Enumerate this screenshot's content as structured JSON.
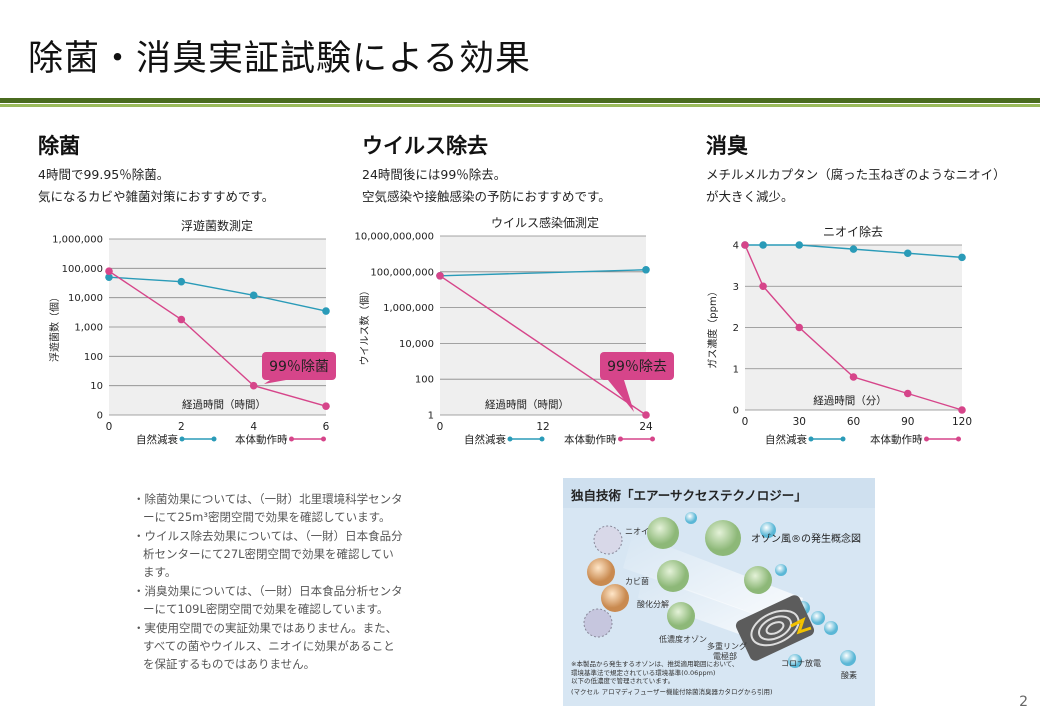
{
  "slide": {
    "title": "除菌・消臭実証試験による効果",
    "page_number": "2"
  },
  "sections": [
    {
      "heading": "除菌",
      "desc": [
        "4時間で99.95％除菌。",
        "気になるカビや雑菌対策におすすめです。"
      ]
    },
    {
      "heading": "ウイルス除去",
      "desc": [
        "24時間後には99％除去。",
        "空気感染や接触感染の予防におすすめです。"
      ]
    },
    {
      "heading": "消臭",
      "desc": [
        "メチルメルカプタン（腐った玉ねぎのようなニオイ）",
        "が大きく減少。"
      ]
    }
  ],
  "chart_data": [
    {
      "type": "line",
      "title": "浮遊菌数測定",
      "xlabel": "経過時間（時間）",
      "ylabel": "浮遊菌数（個）",
      "y_scale": "log",
      "y_ticks": [
        "1,000,000",
        "100,000",
        "10,000",
        "1,000",
        "100",
        "10",
        "0"
      ],
      "x_ticks": [
        "0",
        "2",
        "4",
        "6"
      ],
      "x": [
        0,
        2,
        4,
        6
      ],
      "series": [
        {
          "name": "自然減衰",
          "color": "#2a9bb8",
          "values": [
            50000,
            35000,
            12000,
            3500
          ]
        },
        {
          "name": "本体動作時",
          "color": "#d6458a",
          "values": [
            80000,
            1800,
            10,
            2
          ]
        }
      ],
      "annotation": "99％除菌"
    },
    {
      "type": "line",
      "title": "ウイルス感染価測定",
      "xlabel": "経過時間（時間）",
      "ylabel": "ウイルス数（個）",
      "y_scale": "log",
      "y_ticks": [
        "10,000,000,000",
        "100,000,000",
        "1,000,000",
        "10,000",
        "100",
        "1"
      ],
      "x_ticks": [
        "0",
        "12",
        "24"
      ],
      "x": [
        0,
        24
      ],
      "series": [
        {
          "name": "自然減衰",
          "color": "#2a9bb8",
          "values": [
            60000000,
            130000000
          ]
        },
        {
          "name": "本体動作時",
          "color": "#d6458a",
          "values": [
            60000000,
            1
          ]
        }
      ],
      "annotation": "99％除去"
    },
    {
      "type": "line",
      "title": "ニオイ除去",
      "xlabel": "経過時間（分）",
      "ylabel": "ガス濃度（ppm）",
      "y_ticks": [
        "4",
        "3",
        "2",
        "1",
        "0"
      ],
      "x_ticks": [
        "0",
        "30",
        "60",
        "90",
        "120"
      ],
      "ylim": [
        0,
        4
      ],
      "series": [
        {
          "name": "自然減衰",
          "color": "#2a9bb8",
          "x": [
            0,
            10,
            30,
            60,
            90,
            120
          ],
          "values": [
            4.0,
            4.0,
            4.0,
            3.9,
            3.8,
            3.7
          ]
        },
        {
          "name": "本体動作時",
          "color": "#d6458a",
          "x": [
            0,
            10,
            30,
            60,
            90,
            120
          ],
          "values": [
            4.0,
            3.0,
            2.0,
            0.8,
            0.4,
            0.0
          ]
        }
      ]
    }
  ],
  "notes": [
    "・除菌効果については、（一財）北里環境科学センターにて25m³密閉空間で効果を確認しています。",
    "・ウイルス除去効果については、（一財）日本食品分析センターにて27L密閉空間で効果を確認しています。",
    "・消臭効果については、（一財）日本食品分析センターにて109L密閉空間で効果を確認しています。",
    "・実使用空間での実証効果ではありません。また、すべての菌やウイルス、ニオイに効果があることを保証するものではありません。"
  ],
  "ozone": {
    "title": "独自技術「エアーサクセステクノロジー」",
    "subtitle": "オゾン風®の発生概念図",
    "labels": {
      "nioi": "ニオイ",
      "kabi": "カビ菌",
      "sanka": "酸化分解",
      "teinodo": "低濃度オゾン",
      "ring": "多重リング",
      "electrode": "電極部",
      "corona": "コロナ放電",
      "oxygen": "酸素"
    },
    "footnote": [
      "※本製品から発生するオゾンは、推奨適用範囲において、",
      "環境基準法で規定されている環境基準(0.06ppm)",
      "以下の低濃度で管理されています。",
      "(マクセル アロマディフューザー機能付除菌消臭器カタログから引用)"
    ]
  }
}
